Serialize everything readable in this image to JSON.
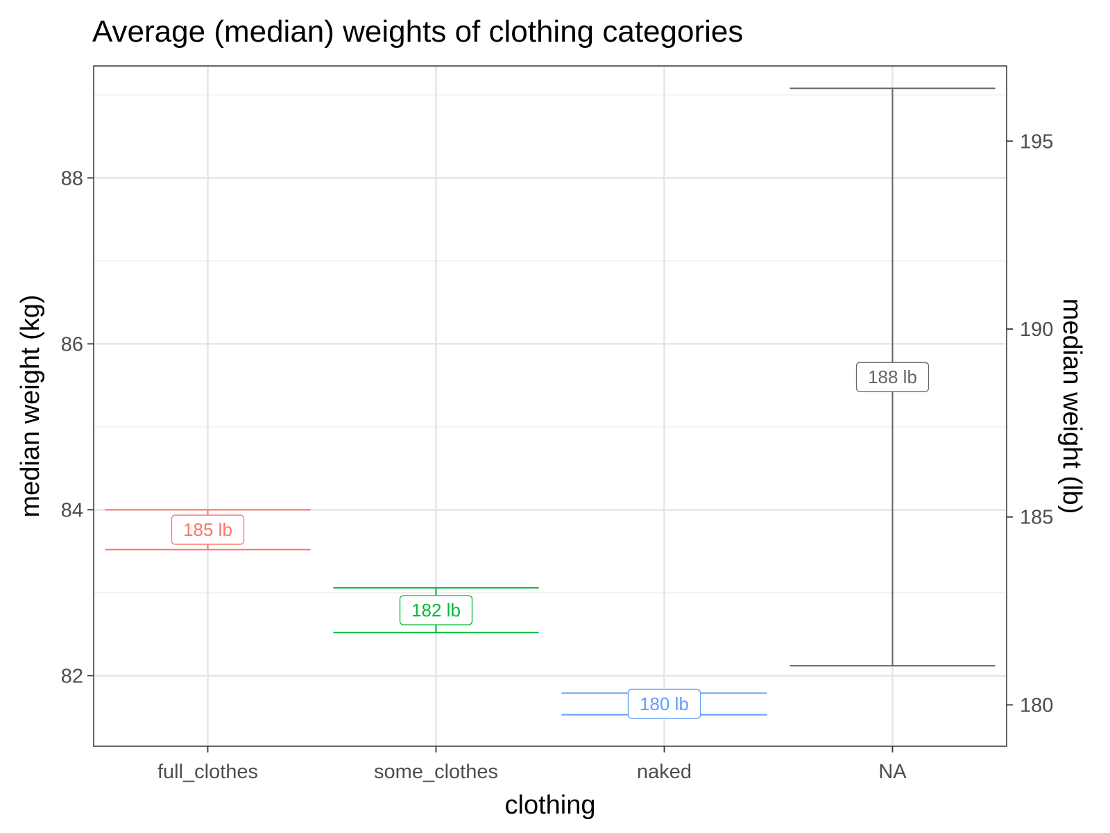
{
  "chart_data": {
    "type": "errorbar",
    "title": "Average (median) weights of clothing categories",
    "xlabel": "clothing",
    "ylabel": "median weight (kg)",
    "ylabel_secondary": "median weight (lb)",
    "categories": [
      "full_clothes",
      "some_clothes",
      "naked",
      "NA"
    ],
    "ylim": [
      81.15,
      89.35
    ],
    "yticks": [
      82,
      84,
      86,
      88
    ],
    "ylim_secondary_lb": [
      178.9,
      197.0
    ],
    "yticks_secondary": [
      180,
      185,
      190,
      195
    ],
    "grid": true,
    "legend": "none",
    "series": [
      {
        "category": "full_clothes",
        "lower": 83.52,
        "upper": 84.0,
        "label": "185 lb",
        "color": "#F8766D"
      },
      {
        "category": "some_clothes",
        "lower": 82.52,
        "upper": 83.06,
        "label": "182 lb",
        "color": "#00BA38"
      },
      {
        "category": "naked",
        "lower": 81.53,
        "upper": 81.79,
        "label": "180 lb",
        "color": "#619CFF"
      },
      {
        "category": "NA",
        "lower": 82.12,
        "upper": 89.08,
        "label": "188 lb",
        "color": "#666666"
      }
    ]
  }
}
